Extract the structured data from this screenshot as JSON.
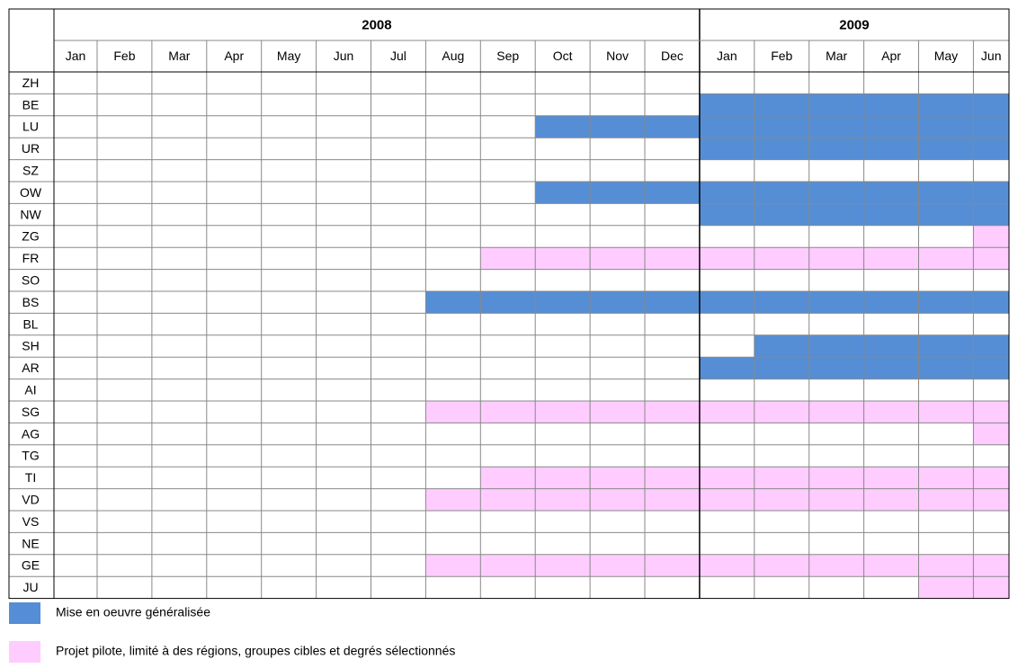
{
  "table": {
    "years": [
      {
        "year": "2008",
        "months": [
          "Jan",
          "Feb",
          "Mar",
          "Apr",
          "May",
          "Jun",
          "Jul",
          "Aug",
          "Sep",
          "Oct",
          "Nov",
          "Dec"
        ]
      },
      {
        "year": "2009",
        "months": [
          "Jan",
          "Feb",
          "Mar",
          "Apr",
          "May",
          "Jun"
        ]
      }
    ],
    "rows": [
      {
        "label": "ZH",
        "cells": [
          null,
          null,
          null,
          null,
          null,
          null,
          null,
          null,
          null,
          null,
          null,
          null,
          null,
          null,
          null,
          null,
          null,
          null
        ]
      },
      {
        "label": "BE",
        "cells": [
          null,
          null,
          null,
          null,
          null,
          null,
          null,
          null,
          null,
          null,
          null,
          null,
          0,
          0,
          0,
          0,
          0,
          0
        ]
      },
      {
        "label": "LU",
        "cells": [
          null,
          null,
          null,
          null,
          null,
          null,
          null,
          null,
          null,
          0,
          0,
          0,
          0,
          0,
          0,
          0,
          0,
          0
        ]
      },
      {
        "label": "UR",
        "cells": [
          null,
          null,
          null,
          null,
          null,
          null,
          null,
          null,
          null,
          null,
          null,
          null,
          0,
          0,
          0,
          0,
          0,
          0
        ]
      },
      {
        "label": "SZ",
        "cells": [
          null,
          null,
          null,
          null,
          null,
          null,
          null,
          null,
          null,
          null,
          null,
          null,
          null,
          null,
          null,
          null,
          null,
          null
        ]
      },
      {
        "label": "OW",
        "cells": [
          null,
          null,
          null,
          null,
          null,
          null,
          null,
          null,
          null,
          0,
          0,
          0,
          0,
          0,
          0,
          0,
          0,
          0
        ]
      },
      {
        "label": "NW",
        "cells": [
          null,
          null,
          null,
          null,
          null,
          null,
          null,
          null,
          null,
          null,
          null,
          null,
          0,
          0,
          0,
          0,
          0,
          0
        ]
      },
      {
        "label": "ZG",
        "cells": [
          null,
          null,
          null,
          null,
          null,
          null,
          null,
          null,
          null,
          null,
          null,
          null,
          null,
          null,
          null,
          null,
          null,
          1
        ]
      },
      {
        "label": "FR",
        "cells": [
          null,
          null,
          null,
          null,
          null,
          null,
          null,
          null,
          1,
          1,
          1,
          1,
          1,
          1,
          1,
          1,
          1,
          1
        ]
      },
      {
        "label": "SO",
        "cells": [
          null,
          null,
          null,
          null,
          null,
          null,
          null,
          null,
          null,
          null,
          null,
          null,
          null,
          null,
          null,
          null,
          null,
          null
        ]
      },
      {
        "label": "BS",
        "cells": [
          null,
          null,
          null,
          null,
          null,
          null,
          null,
          0,
          0,
          0,
          0,
          0,
          0,
          0,
          0,
          0,
          0,
          0
        ]
      },
      {
        "label": "BL",
        "cells": [
          null,
          null,
          null,
          null,
          null,
          null,
          null,
          null,
          null,
          null,
          null,
          null,
          null,
          null,
          null,
          null,
          null,
          null
        ]
      },
      {
        "label": "SH",
        "cells": [
          null,
          null,
          null,
          null,
          null,
          null,
          null,
          null,
          null,
          null,
          null,
          null,
          null,
          0,
          0,
          0,
          0,
          0
        ]
      },
      {
        "label": "AR",
        "cells": [
          null,
          null,
          null,
          null,
          null,
          null,
          null,
          null,
          null,
          null,
          null,
          null,
          0,
          0,
          0,
          0,
          0,
          0
        ]
      },
      {
        "label": "AI",
        "cells": [
          null,
          null,
          null,
          null,
          null,
          null,
          null,
          null,
          null,
          null,
          null,
          null,
          null,
          null,
          null,
          null,
          null,
          null
        ]
      },
      {
        "label": "SG",
        "cells": [
          null,
          null,
          null,
          null,
          null,
          null,
          null,
          1,
          1,
          1,
          1,
          1,
          1,
          1,
          1,
          1,
          1,
          1
        ]
      },
      {
        "label": "AG",
        "cells": [
          null,
          null,
          null,
          null,
          null,
          null,
          null,
          null,
          null,
          null,
          null,
          null,
          null,
          null,
          null,
          null,
          null,
          1
        ]
      },
      {
        "label": "TG",
        "cells": [
          null,
          null,
          null,
          null,
          null,
          null,
          null,
          null,
          null,
          null,
          null,
          null,
          null,
          null,
          null,
          null,
          null,
          null
        ]
      },
      {
        "label": "TI",
        "cells": [
          null,
          null,
          null,
          null,
          null,
          null,
          null,
          null,
          1,
          1,
          1,
          1,
          1,
          1,
          1,
          1,
          1,
          1
        ]
      },
      {
        "label": "VD",
        "cells": [
          null,
          null,
          null,
          null,
          null,
          null,
          null,
          1,
          1,
          1,
          1,
          1,
          1,
          1,
          1,
          1,
          1,
          1
        ]
      },
      {
        "label": "VS",
        "cells": [
          null,
          null,
          null,
          null,
          null,
          null,
          null,
          null,
          null,
          null,
          null,
          null,
          null,
          null,
          null,
          null,
          null,
          null
        ]
      },
      {
        "label": "NE",
        "cells": [
          null,
          null,
          null,
          null,
          null,
          null,
          null,
          null,
          null,
          null,
          null,
          null,
          null,
          null,
          null,
          null,
          null,
          null
        ]
      },
      {
        "label": "GE",
        "cells": [
          null,
          null,
          null,
          null,
          null,
          null,
          null,
          1,
          1,
          1,
          1,
          1,
          1,
          1,
          1,
          1,
          1,
          1
        ]
      },
      {
        "label": "JU",
        "cells": [
          null,
          null,
          null,
          null,
          null,
          null,
          null,
          null,
          null,
          null,
          null,
          null,
          null,
          null,
          null,
          null,
          1,
          1
        ]
      }
    ],
    "legend": [
      {
        "label": "Mise en oeuvre généralisée",
        "color": "#558ed5"
      },
      {
        "label": "Projet pilote, limité à des régions, groupes cibles et degrés sélectionnés",
        "color": "#ffccff"
      }
    ]
  }
}
